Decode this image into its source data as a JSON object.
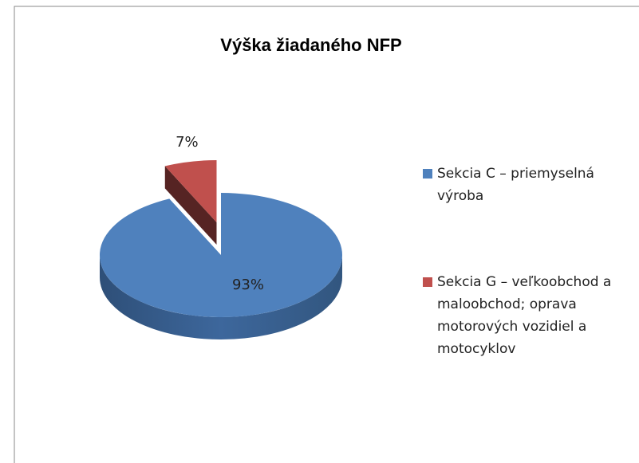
{
  "chart_data": {
    "type": "pie",
    "title": "Výška žiadaného NFP",
    "categories": [
      "Sekcia C – priemyselná výroba",
      "Sekcia G – veľkoobchod a maloobchod; oprava motorových vozidiel a motocyklov"
    ],
    "values": [
      93,
      7
    ],
    "value_labels": [
      "93%",
      "7%"
    ],
    "colors": [
      "#4f81bd",
      "#c0504d"
    ],
    "legend": "right"
  }
}
